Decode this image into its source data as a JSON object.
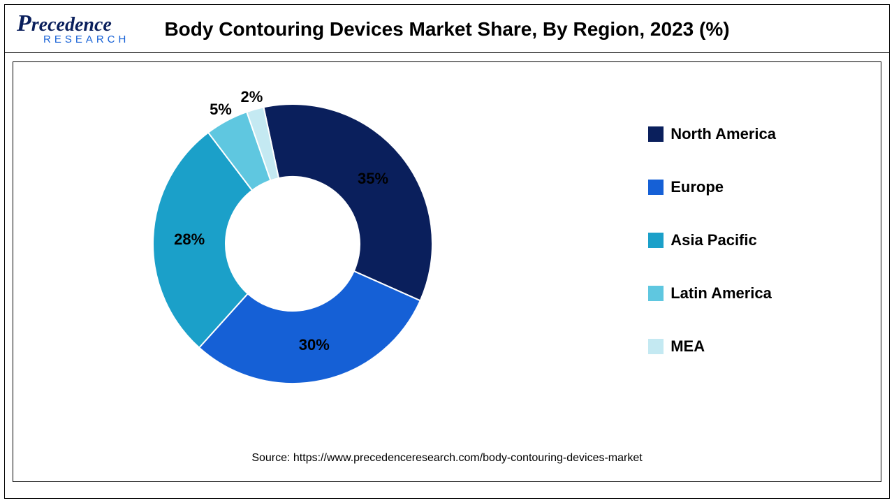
{
  "logo": {
    "line1": "Precedence",
    "line2": "RESEARCH"
  },
  "chart": {
    "type": "donut",
    "title": "Body Contouring Devices Market Share, By Region, 2023 (%)",
    "background_color": "#ffffff",
    "border_color": "#000000",
    "title_fontsize": 28,
    "title_fontweight": "bold",
    "label_fontsize": 22,
    "label_fontweight": "bold",
    "label_color": "#000000",
    "inner_radius_ratio": 0.48,
    "outer_radius": 200,
    "start_angle_deg": -12,
    "slice_border_color": "#ffffff",
    "slice_border_width": 2,
    "series": [
      {
        "name": "North America",
        "value": 35,
        "color": "#0a1f5c",
        "label": "35%"
      },
      {
        "name": "Europe",
        "value": 30,
        "color": "#1560d6",
        "label": "30%"
      },
      {
        "name": "Asia Pacific",
        "value": 28,
        "color": "#1ba0c9",
        "label": "28%"
      },
      {
        "name": "Latin America",
        "value": 5,
        "color": "#5fc7e0",
        "label": "5%"
      },
      {
        "name": "MEA",
        "value": 2,
        "color": "#c4e9f2",
        "label": "2%"
      }
    ],
    "legend": {
      "position": "right",
      "fontsize": 22,
      "fontweight": "bold",
      "swatch_size": 22
    }
  },
  "source": {
    "prefix": "Source: ",
    "url": "https://www.precedenceresearch.com/body-contouring-devices-market"
  }
}
